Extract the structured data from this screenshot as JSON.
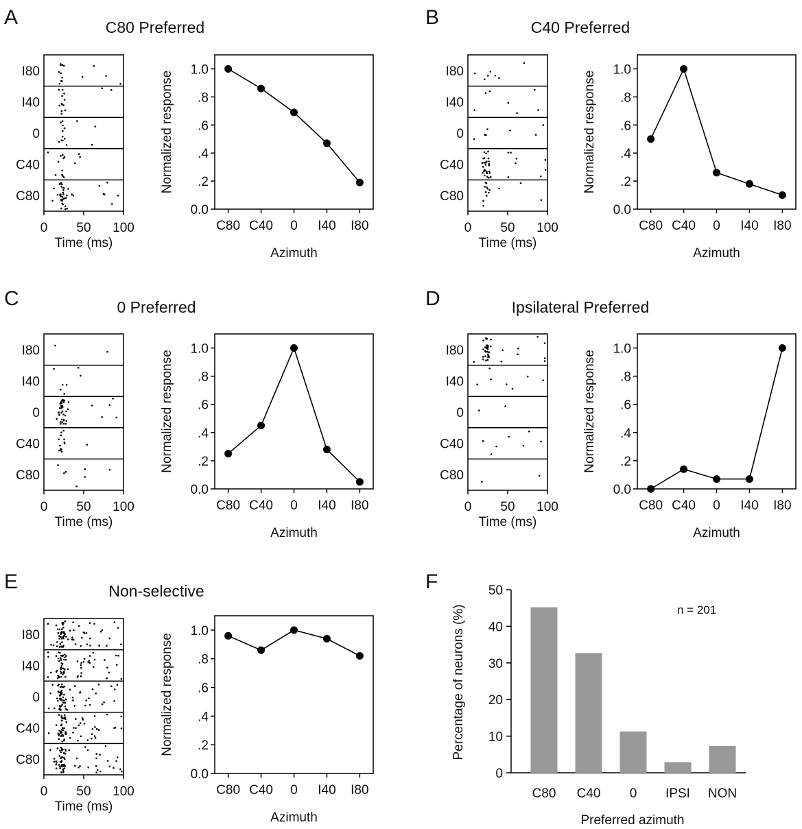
{
  "chart_data": [
    {
      "panel": "A",
      "type": "line",
      "title": "C80 Preferred",
      "xlabel": "Azimuth",
      "ylabel": "Normalized response",
      "categories": [
        "C80",
        "C40",
        "0",
        "I40",
        "I80"
      ],
      "values": [
        1.0,
        0.86,
        0.69,
        0.47,
        0.19
      ],
      "ylim": [
        0,
        1.1
      ],
      "yticks": [
        "0.0",
        ".2",
        ".4",
        ".6",
        ".8",
        "1.0"
      ],
      "raster": {
        "xlabel": "Time (ms)",
        "xticks": [
          "0",
          "50",
          "100"
        ],
        "xlim": [
          0,
          100
        ],
        "rows": [
          "I80",
          "I40",
          "0",
          "C40",
          "C80"
        ],
        "activity": [
          "moderate",
          "moderate",
          "moderate",
          "moderate",
          "strong"
        ]
      }
    },
    {
      "panel": "B",
      "type": "line",
      "title": "C40 Preferred",
      "xlabel": "Azimuth",
      "ylabel": "Normalized response",
      "categories": [
        "C80",
        "C40",
        "0",
        "I40",
        "I80"
      ],
      "values": [
        0.5,
        1.0,
        0.26,
        0.18,
        0.1
      ],
      "ylim": [
        0,
        1.1
      ],
      "yticks": [
        "0.0",
        ".2",
        ".4",
        ".6",
        ".8",
        "1.0"
      ],
      "raster": {
        "xlabel": "Time (ms)",
        "xticks": [
          "0",
          "50",
          "100"
        ],
        "xlim": [
          0,
          100
        ],
        "rows": [
          "I80",
          "I40",
          "0",
          "C40",
          "C80"
        ],
        "activity": [
          "sparse",
          "sparse",
          "sparse",
          "strong",
          "moderate"
        ]
      }
    },
    {
      "panel": "C",
      "type": "line",
      "title": "0 Preferred",
      "xlabel": "Azimuth",
      "ylabel": "Normalized response",
      "categories": [
        "C80",
        "C40",
        "0",
        "I40",
        "I80"
      ],
      "values": [
        0.25,
        0.45,
        1.0,
        0.28,
        0.05
      ],
      "ylim": [
        0,
        1.1
      ],
      "yticks": [
        "0.0",
        ".2",
        ".4",
        ".6",
        ".8",
        "1.0"
      ],
      "raster": {
        "xlabel": "Time (ms)",
        "xticks": [
          "0",
          "50",
          "100"
        ],
        "xlim": [
          0,
          100
        ],
        "rows": [
          "I80",
          "I40",
          "0",
          "C40",
          "C80"
        ],
        "activity": [
          "very sparse",
          "sparse",
          "strong",
          "moderate",
          "sparse"
        ]
      }
    },
    {
      "panel": "D",
      "type": "line",
      "title": "Ipsilateral Preferred",
      "xlabel": "Azimuth",
      "ylabel": "Normalized response",
      "categories": [
        "C80",
        "C40",
        "0",
        "I40",
        "I80"
      ],
      "values": [
        0.0,
        0.14,
        0.07,
        0.07,
        1.0
      ],
      "ylim": [
        0,
        1.1
      ],
      "yticks": [
        "0.0",
        ".2",
        ".4",
        ".6",
        ".8",
        "1.0"
      ],
      "raster": {
        "xlabel": "Time (ms)",
        "xticks": [
          "0",
          "50",
          "100"
        ],
        "xlim": [
          0,
          100
        ],
        "rows": [
          "I80",
          "I40",
          "0",
          "C40",
          "C80"
        ],
        "activity": [
          "strong",
          "sparse",
          "very sparse",
          "sparse",
          "very sparse"
        ]
      }
    },
    {
      "panel": "E",
      "type": "line",
      "title": "Non-selective",
      "xlabel": "Azimuth",
      "ylabel": "Normalized response",
      "categories": [
        "C80",
        "C40",
        "0",
        "I40",
        "I80"
      ],
      "values": [
        0.96,
        0.86,
        1.0,
        0.94,
        0.82
      ],
      "ylim": [
        0,
        1.1
      ],
      "yticks": [
        "0.0",
        ".2",
        ".4",
        ".6",
        ".8",
        "1.0"
      ],
      "raster": {
        "xlabel": "Time (ms)",
        "xticks": [
          "0",
          "50",
          "100"
        ],
        "xlim": [
          0,
          100
        ],
        "rows": [
          "I80",
          "I40",
          "0",
          "C40",
          "C80"
        ],
        "activity": [
          "dense",
          "dense",
          "dense",
          "dense",
          "dense"
        ]
      }
    },
    {
      "panel": "F",
      "type": "bar",
      "xlabel": "Preferred azimuth",
      "ylabel": "Percentage of neurons (%)",
      "categories": [
        "C80",
        "C40",
        "0",
        "IPSI",
        "NON"
      ],
      "values": [
        45.2,
        32.7,
        11.3,
        2.9,
        7.3
      ],
      "ylim": [
        0,
        50
      ],
      "yticks": [
        "0",
        "10",
        "20",
        "30",
        "40",
        "50"
      ],
      "annotation": "n = 201",
      "bar_color": "#999999"
    }
  ]
}
